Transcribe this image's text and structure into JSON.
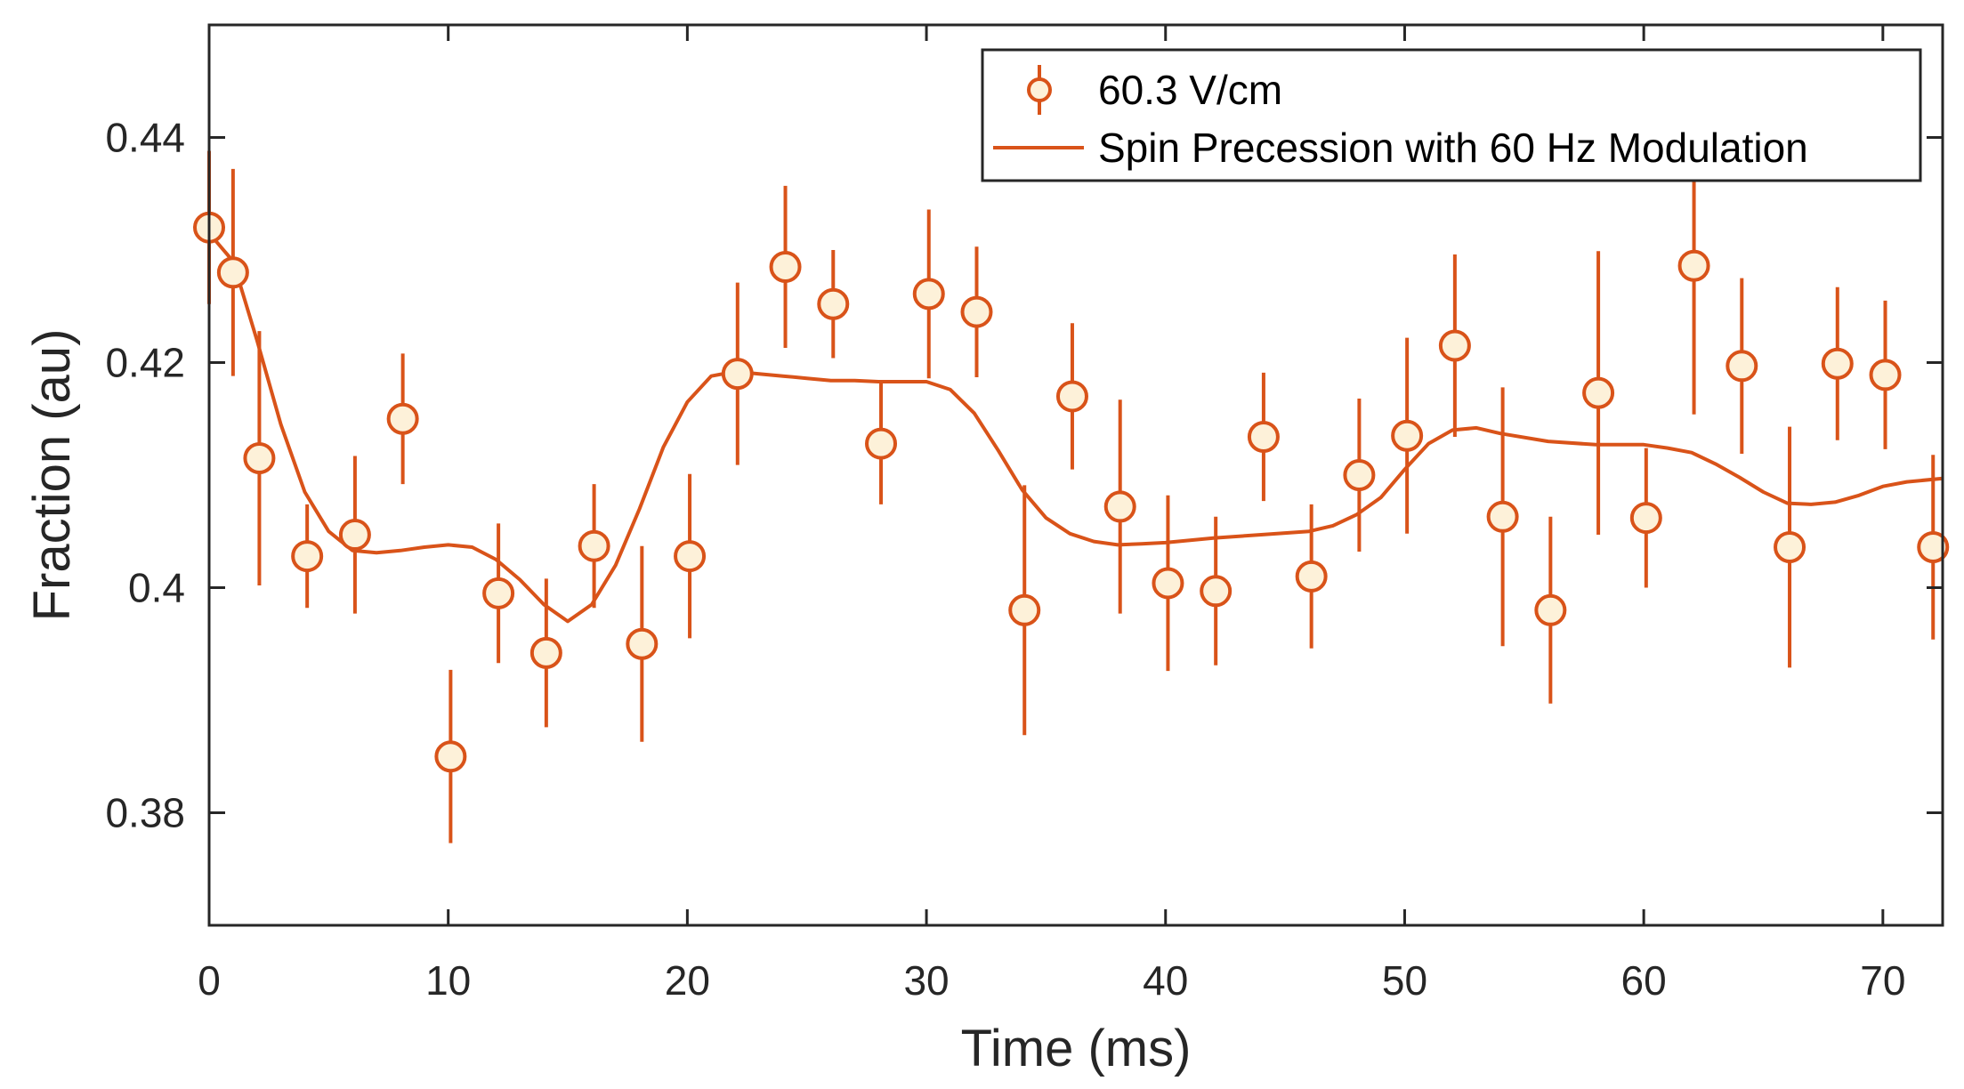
{
  "chart_data": {
    "type": "scatter",
    "title": "",
    "xlabel": "Time (ms)",
    "ylabel": "Fraction (au)",
    "xlim": [
      0,
      72.5
    ],
    "ylim": [
      0.37,
      0.45
    ],
    "xticks": [
      0,
      10,
      20,
      30,
      40,
      50,
      60,
      70
    ],
    "xtick_labels": [
      "0",
      "10",
      "20",
      "30",
      "40",
      "50",
      "60",
      "70"
    ],
    "yticks": [
      0.38,
      0.4,
      0.42,
      0.44
    ],
    "ytick_labels": [
      "0.38",
      "0.4",
      "0.42",
      "0.44"
    ],
    "grid": false,
    "legend_position": "top-right",
    "series": [
      {
        "name": "60.3 V/cm",
        "kind": "errorbar",
        "color": "#D95319",
        "marker_fill": "#FDF1D9",
        "x": [
          0,
          1,
          2.1,
          4.1,
          6.1,
          8.1,
          10.1,
          12.1,
          14.1,
          16.1,
          18.1,
          20.1,
          22.1,
          24.1,
          26.1,
          28.1,
          30.1,
          32.1,
          34.1,
          36.1,
          38.1,
          40.1,
          42.1,
          44.1,
          46.1,
          48.1,
          50.1,
          52.1,
          54.1,
          56.1,
          58.1,
          60.1,
          62.1,
          64.1,
          66.1,
          68.1,
          70.1,
          72.1
        ],
        "y": [
          0.432,
          0.428,
          0.4115,
          0.4028,
          0.4047,
          0.415,
          0.385,
          0.3995,
          0.3942,
          0.4037,
          0.395,
          0.4028,
          0.419,
          0.4285,
          0.4252,
          0.4128,
          0.4261,
          0.4245,
          0.398,
          0.417,
          0.4072,
          0.4004,
          0.3997,
          0.4134,
          0.401,
          0.41,
          0.4135,
          0.4215,
          0.4063,
          0.398,
          0.4173,
          0.4062,
          0.4286,
          0.4197,
          0.4036,
          0.4199,
          0.4189,
          0.4036
        ],
        "err": [
          0.0068,
          0.0092,
          0.0113,
          0.0046,
          0.007,
          0.0058,
          0.0077,
          0.0062,
          0.0066,
          0.0055,
          0.0087,
          0.0073,
          0.0081,
          0.0072,
          0.0048,
          0.0054,
          0.0075,
          0.0058,
          0.0111,
          0.0065,
          0.0095,
          0.0078,
          0.0066,
          0.0057,
          0.0064,
          0.0068,
          0.0087,
          0.0081,
          0.0115,
          0.0083,
          0.0126,
          0.0062,
          0.0132,
          0.0078,
          0.0107,
          0.0068,
          0.0066,
          0.0082
        ]
      },
      {
        "name": "Spin Precession with 60 Hz Modulation",
        "kind": "line",
        "color": "#D95319",
        "x": [
          0,
          1,
          2,
          3,
          4,
          5,
          6,
          7,
          8,
          9,
          10,
          11,
          12,
          13,
          14,
          15,
          16,
          17,
          18,
          19,
          20,
          21,
          22,
          23,
          24,
          25,
          26,
          27,
          28,
          29,
          30,
          31,
          32,
          33,
          34,
          35,
          36,
          37,
          38,
          39,
          40,
          42,
          44,
          46,
          47,
          48,
          49,
          50,
          51,
          52,
          53,
          54,
          56,
          58,
          60,
          61,
          62,
          63,
          64,
          65,
          66,
          67,
          68,
          69,
          70,
          71,
          72.5
        ],
        "y": [
          0.4315,
          0.429,
          0.422,
          0.4145,
          0.4085,
          0.405,
          0.4033,
          0.4031,
          0.4033,
          0.4036,
          0.4038,
          0.4036,
          0.4025,
          0.4007,
          0.3985,
          0.397,
          0.3985,
          0.402,
          0.407,
          0.4125,
          0.4165,
          0.4188,
          0.4192,
          0.419,
          0.4188,
          0.4186,
          0.4184,
          0.4184,
          0.4183,
          0.4183,
          0.4183,
          0.4176,
          0.4155,
          0.4122,
          0.4087,
          0.4062,
          0.4048,
          0.4041,
          0.4038,
          0.4039,
          0.404,
          0.4044,
          0.4047,
          0.405,
          0.4055,
          0.4065,
          0.408,
          0.4105,
          0.4128,
          0.414,
          0.4142,
          0.4137,
          0.413,
          0.4127,
          0.4127,
          0.4124,
          0.412,
          0.411,
          0.4098,
          0.4085,
          0.4075,
          0.4074,
          0.4076,
          0.4082,
          0.409,
          0.4094,
          0.4097
        ]
      }
    ]
  }
}
